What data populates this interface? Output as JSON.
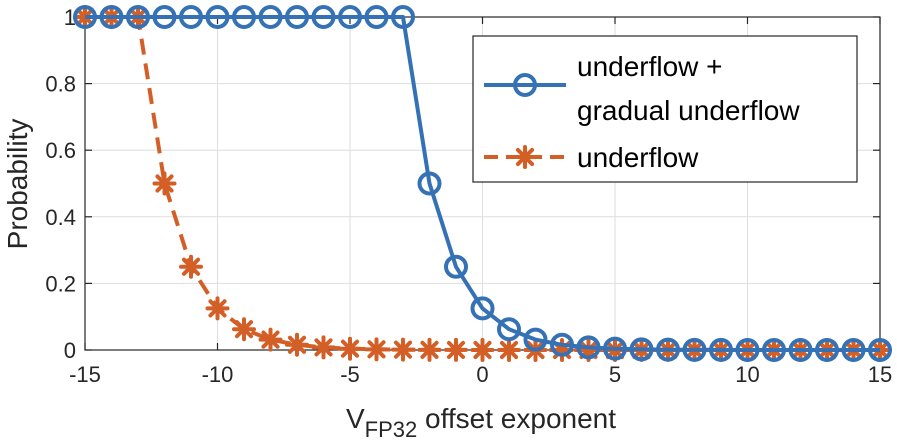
{
  "chart_data": {
    "type": "line",
    "xlabel_main": "V",
    "xlabel_sub": "FP32",
    "xlabel_rest": " offset exponent",
    "ylabel": "Probability",
    "xlim": [
      -15,
      15
    ],
    "ylim": [
      0,
      1
    ],
    "xticks": [
      -15,
      -10,
      -5,
      0,
      5,
      10,
      15
    ],
    "yticks": [
      0,
      0.2,
      0.4,
      0.6,
      0.8,
      1
    ],
    "xtick_labels": [
      "-15",
      "-10",
      "-5",
      "0",
      "5",
      "10",
      "15"
    ],
    "ytick_labels": [
      "0",
      "0.2",
      "0.4",
      "0.6",
      "0.8",
      "1"
    ],
    "grid": true,
    "legend_position": "top-right",
    "x": [
      -15,
      -14,
      -13,
      -12,
      -11,
      -10,
      -9,
      -8,
      -7,
      -6,
      -5,
      -4,
      -3,
      -2,
      -1,
      0,
      1,
      2,
      3,
      4,
      5,
      6,
      7,
      8,
      9,
      10,
      11,
      12,
      13,
      14,
      15
    ],
    "series": [
      {
        "name_line1": "underflow +",
        "name_line2": "gradual underflow",
        "color": "#3571b5",
        "line_style": "solid",
        "marker": "circle",
        "values": [
          1,
          1,
          1,
          1,
          1,
          1,
          1,
          1,
          1,
          1,
          1,
          1,
          1,
          0.5,
          0.25,
          0.125,
          0.0625,
          0.03125,
          0.015625,
          0.0078125,
          0.004,
          0.002,
          0.001,
          0.0005,
          0.0002,
          0.0001,
          5e-05,
          0,
          0,
          0,
          0
        ]
      },
      {
        "name": "underflow",
        "color": "#d35f26",
        "line_style": "dashed",
        "marker": "asterisk",
        "values": [
          1,
          1,
          1,
          0.5,
          0.25,
          0.125,
          0.0625,
          0.03125,
          0.015625,
          0.0078125,
          0.0039,
          0.002,
          0.001,
          0.0005,
          0.0002,
          0.0001,
          5e-05,
          0,
          0,
          0,
          0,
          0,
          0,
          0,
          0,
          0,
          0,
          0,
          0,
          0,
          0
        ]
      }
    ]
  }
}
